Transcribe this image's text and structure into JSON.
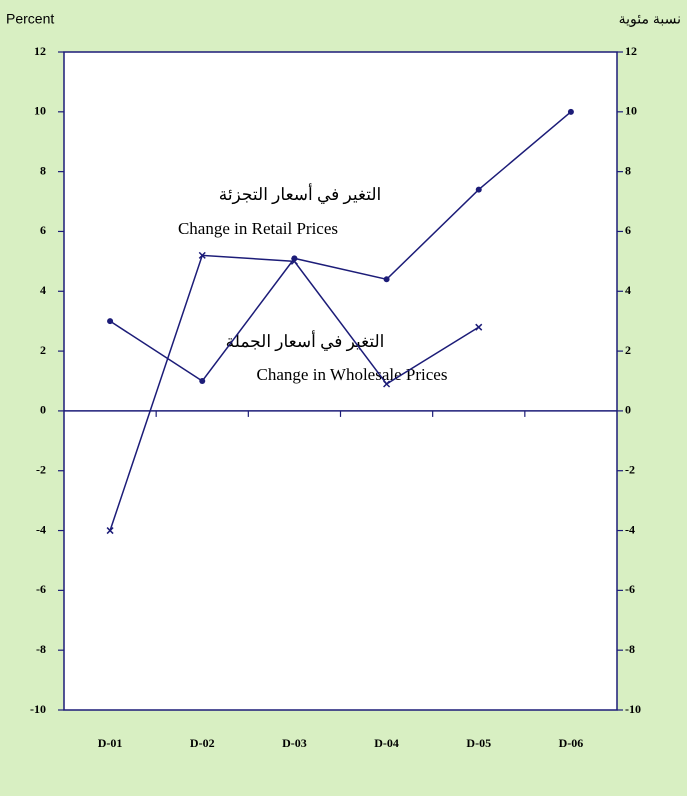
{
  "chart_data": {
    "type": "line",
    "y_label": "Percent",
    "y2_label": "نسبة مئوية",
    "categories": [
      "D-01",
      "D-02",
      "D-03",
      "D-04",
      "D-05",
      "D-06"
    ],
    "series": [
      {
        "name": "Change in Retail Prices",
        "name_ar": "التغير في أسعار التجزئة",
        "color": "#1c1c78",
        "marker": "dot",
        "values": [
          3.0,
          1.0,
          5.1,
          4.4,
          7.4,
          10.0
        ]
      },
      {
        "name": "Change in Wholesale Prices",
        "name_ar": "التغير في أسعار الجملة",
        "color": "#1c1c78",
        "marker": "x",
        "values": [
          -4.0,
          5.2,
          5.0,
          0.9,
          2.8,
          null
        ]
      }
    ],
    "ylim": [
      -10,
      12
    ],
    "yticks": [
      -10,
      -8,
      -6,
      -4,
      -2,
      0,
      2,
      4,
      6,
      8,
      10,
      12
    ],
    "y2lim": [
      -10,
      12
    ],
    "y2ticks": [
      -10,
      -8,
      -6,
      -4,
      -2,
      0,
      2,
      4,
      6,
      8,
      10,
      12
    ]
  }
}
